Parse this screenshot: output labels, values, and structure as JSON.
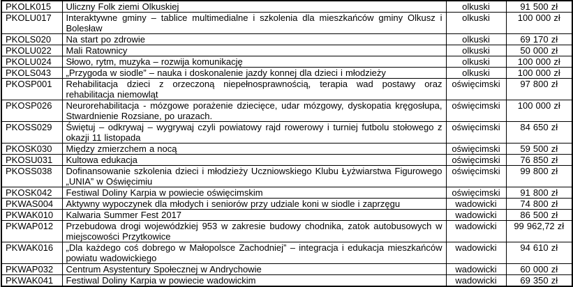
{
  "colors": {
    "border": "#000000",
    "text": "#000000",
    "background": "#ffffff"
  },
  "table": {
    "rows": [
      {
        "code": "PKOLK015",
        "title": "Uliczny Folk ziemi Olkuskiej",
        "district": "olkuski",
        "amount": "91 500 zł"
      },
      {
        "code": "PKOLU017",
        "title": "Interaktywne gminy – tablice multimedialne i szkolenia dla mieszkańców gminy Olkusz i Bolesław",
        "district": "olkuski",
        "amount": "100 000 zł"
      },
      {
        "code": "PKOLS020",
        "title": "Na start po zdrowie",
        "district": "olkuski",
        "amount": "69 170 zł"
      },
      {
        "code": "PKOLU022",
        "title": "Mali Ratownicy",
        "district": "olkuski",
        "amount": "50 000 zł"
      },
      {
        "code": "PKOLU024",
        "title": "Słowo, rytm, muzyka – rozwija komunikację",
        "district": "olkuski",
        "amount": "100 000 zł"
      },
      {
        "code": "PKOLS043",
        "title": "„Przygoda w siodle” – nauka i doskonalenie jazdy konnej dla dzieci i młodzieży",
        "district": "olkuski",
        "amount": "100 000 zł"
      },
      {
        "code": "PKOSP001",
        "title": "Rehabilitacja dzieci z orzeczoną niepełnosprawnością, terapia wad postawy oraz rehabilitacja niemowląt",
        "district": "oświęcimski",
        "amount": "97 800 zł"
      },
      {
        "code": "PKOSP026",
        "title": "Neurorehabilitacja - mózgowe porażenie dziecięce, udar mózgowy, dyskopatia kręgosłupa, Stwardnienie Rozsiane, po urazach.",
        "district": "oświęcimski",
        "amount": "100 000 zł"
      },
      {
        "code": "PKOSS029",
        "title": "Świętuj – odkrywaj – wygrywaj czyli powiatowy rajd rowerowy i turniej futbolu stołowego z okazji 11 listopada",
        "district": "oświęcimski",
        "amount": "84 650 zł"
      },
      {
        "code": "PKOSK030",
        "title": "Między zmierzchem a nocą",
        "district": "oświęcimski",
        "amount": "59 500 zł"
      },
      {
        "code": "PKOSU031",
        "title": "Kultowa edukacja",
        "district": "oświęcimski",
        "amount": "76 850 zł"
      },
      {
        "code": "PKOSS038",
        "title": "Dofinansowanie szkolenia dzieci i młodzieży Uczniowskiego Klubu Łyżwiarstwa Figurowego „UNIA” w Oświęcimiu",
        "district": "oświęcimski",
        "amount": "99 800 zł"
      },
      {
        "code": "PKOSK042",
        "title": "Festiwal Doliny Karpia w powiecie oświęcimskim",
        "district": "oświęcimski",
        "amount": "91 800 zł"
      },
      {
        "code": "PKWAS004",
        "title": "Aktywny wypoczynek dla młodych i seniorów przy udziale koni w siodle i zaprzęgu",
        "district": "wadowicki",
        "amount": "74 800 zł"
      },
      {
        "code": "PKWAK010",
        "title": "Kalwaria Summer Fest 2017",
        "district": "wadowicki",
        "amount": "86 500 zł"
      },
      {
        "code": "PKWAP012",
        "title": "Przebudowa drogi wojewódzkiej 953 w zakresie budowy chodnika, zatok autobusowych w miejscowości Przytkowice",
        "district": "wadowicki",
        "amount": "99 962,72 zł"
      },
      {
        "code": "PKWAK016",
        "title": "„Dla każdego coś dobrego w Małopolsce Zachodniej” – integracja i edukacja mieszkańców powiatu wadowickiego",
        "district": "wadowicki",
        "amount": "94 610 zł"
      },
      {
        "code": "PKWAP032",
        "title": "Centrum Asystentury Społecznej w Andrychowie",
        "district": "wadowicki",
        "amount": "60 000 zł"
      },
      {
        "code": "PKWAK041",
        "title": "Festiwal Doliny Karpia w powiecie wadowickim",
        "district": "wadowicki",
        "amount": "69 350 zł"
      }
    ]
  }
}
